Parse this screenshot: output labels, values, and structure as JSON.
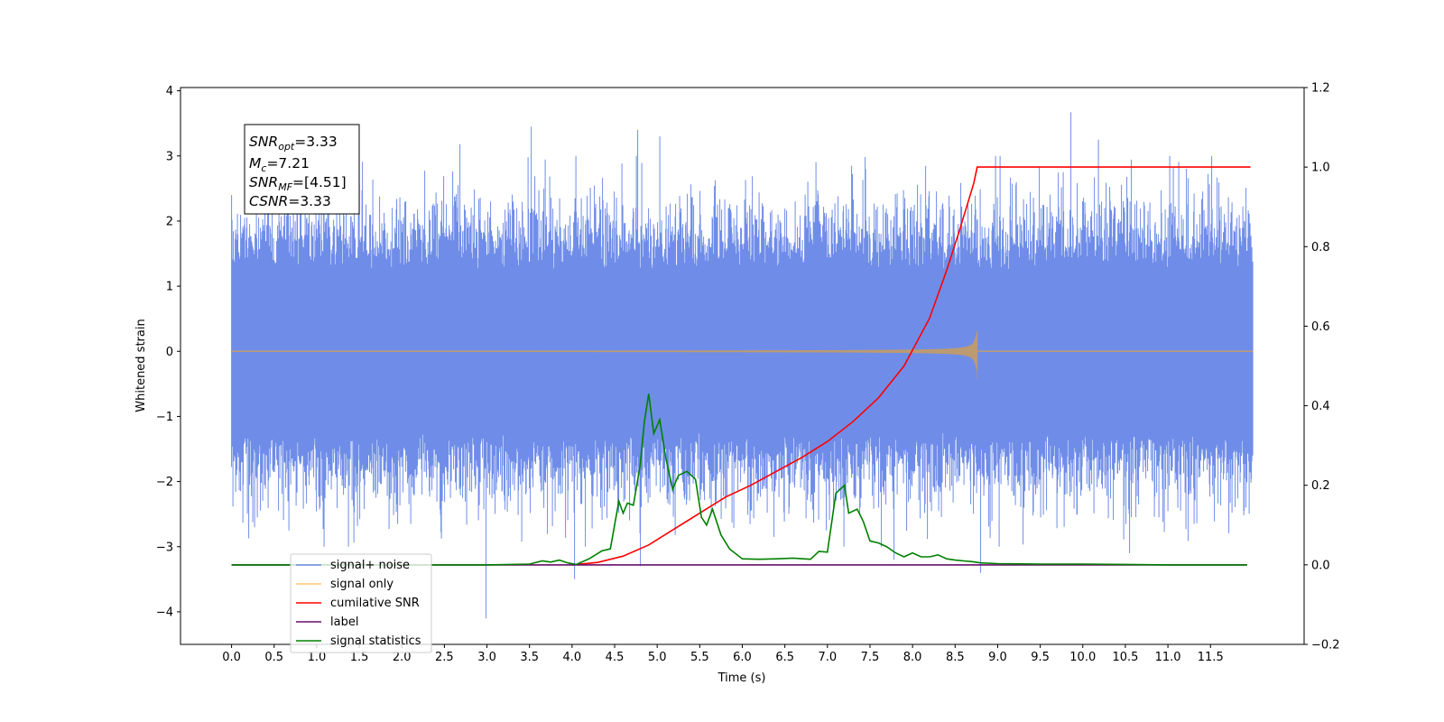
{
  "chart_data": {
    "type": "line",
    "title": "",
    "xlabel": "Time (s)",
    "ylabel": "Whitened strain",
    "ylabel_right": "",
    "xlim": [
      -0.6,
      12.6
    ],
    "ylim": [
      -4.5,
      4.05
    ],
    "ylim_right": [
      -0.2,
      1.2
    ],
    "x_ticks": [
      "0.0",
      "0.5",
      "1.0",
      "1.5",
      "2.0",
      "2.5",
      "3.0",
      "3.5",
      "4.0",
      "4.5",
      "5.0",
      "5.5",
      "6.0",
      "6.5",
      "7.0",
      "7.5",
      "8.0",
      "8.5",
      "9.0",
      "9.5",
      "10.0",
      "10.5",
      "11.0",
      "11.5"
    ],
    "y_ticks_left": [
      "−4",
      "−3",
      "−2",
      "−1",
      "0",
      "1",
      "2",
      "3",
      "4"
    ],
    "y_ticks_right": [
      "−0.2",
      "0.0",
      "0.2",
      "0.4",
      "0.6",
      "0.8",
      "1.0",
      "1.2"
    ],
    "grid": false,
    "legend_position": "lower-left",
    "annotation": {
      "lines": [
        {
          "base": "SNR",
          "sub": "opt",
          "rest": "=3.33"
        },
        {
          "base": "M",
          "sub": "c",
          "rest": "=7.21"
        },
        {
          "base": "SNR",
          "sub": "MF",
          "rest": "=[4.51]"
        },
        {
          "base": "CSNR",
          "sub": "",
          "rest": "=3.33"
        }
      ]
    },
    "series": [
      {
        "name": "signal+ noise",
        "axis": "left",
        "color": "#6f8de8",
        "kind": "noise",
        "x_range": [
          0.0,
          12.0
        ],
        "envelope_typical": 2.2,
        "spikes": [
          [
            0.0,
            2.4
          ],
          [
            2.68,
            3.18
          ],
          [
            3.52,
            3.45
          ],
          [
            4.77,
            3.4
          ],
          [
            5.03,
            3.3
          ],
          [
            9.86,
            3.67
          ],
          [
            10.18,
            3.25
          ],
          [
            11.02,
            3.0
          ],
          [
            2.99,
            -4.1
          ],
          [
            1.37,
            -3.0
          ],
          [
            4.03,
            -3.5
          ],
          [
            4.8,
            -3.3
          ],
          [
            7.78,
            -3.2
          ],
          [
            8.8,
            -3.4
          ],
          [
            10.55,
            -3.1
          ]
        ]
      },
      {
        "name": "signal only",
        "axis": "left",
        "color": "#ffc870",
        "kind": "chirp",
        "x_range": [
          0.0,
          12.0
        ],
        "merger_time": 8.76,
        "peak_amplitude": 0.32
      },
      {
        "name": "cumilative SNR",
        "axis": "right",
        "color": "#ff0000",
        "x": [
          4.0,
          4.3,
          4.6,
          4.9,
          5.2,
          5.5,
          5.8,
          6.1,
          6.4,
          6.7,
          7.0,
          7.3,
          7.6,
          7.9,
          8.2,
          8.4,
          8.55,
          8.65,
          8.72,
          8.76,
          9.0,
          11.97
        ],
        "y": [
          0.0,
          0.006,
          0.022,
          0.05,
          0.09,
          0.13,
          0.17,
          0.2,
          0.235,
          0.27,
          0.31,
          0.36,
          0.42,
          0.5,
          0.62,
          0.74,
          0.84,
          0.91,
          0.96,
          1.0,
          1.0,
          1.0
        ]
      },
      {
        "name": "label",
        "axis": "right",
        "color": "#6a0f6a",
        "x": [
          0.0,
          11.93
        ],
        "y": [
          0.0,
          0.0
        ]
      },
      {
        "name": "signal statistics",
        "axis": "right",
        "color": "#008000",
        "x": [
          0.0,
          3.0,
          3.5,
          3.65,
          3.75,
          3.85,
          3.95,
          4.05,
          4.2,
          4.35,
          4.45,
          4.55,
          4.6,
          4.65,
          4.72,
          4.8,
          4.85,
          4.9,
          4.96,
          5.03,
          5.1,
          5.18,
          5.25,
          5.35,
          5.45,
          5.52,
          5.58,
          5.65,
          5.75,
          5.85,
          6.0,
          6.2,
          6.4,
          6.6,
          6.8,
          6.9,
          7.0,
          7.1,
          7.2,
          7.25,
          7.35,
          7.42,
          7.5,
          7.6,
          7.7,
          7.8,
          7.9,
          8.0,
          8.1,
          8.2,
          8.3,
          8.4,
          8.5,
          8.6,
          8.7,
          8.8,
          9.0,
          9.5,
          10.0,
          10.5,
          11.0,
          11.93
        ],
        "y": [
          0.0,
          0.0,
          0.002,
          0.01,
          0.007,
          0.012,
          0.005,
          0.001,
          0.015,
          0.035,
          0.04,
          0.16,
          0.13,
          0.155,
          0.15,
          0.25,
          0.36,
          0.43,
          0.33,
          0.365,
          0.27,
          0.19,
          0.225,
          0.235,
          0.215,
          0.12,
          0.1,
          0.14,
          0.075,
          0.04,
          0.015,
          0.014,
          0.015,
          0.017,
          0.014,
          0.034,
          0.032,
          0.18,
          0.2,
          0.13,
          0.14,
          0.11,
          0.06,
          0.055,
          0.045,
          0.03,
          0.02,
          0.03,
          0.02,
          0.02,
          0.025,
          0.015,
          0.012,
          0.01,
          0.008,
          0.005,
          0.003,
          0.002,
          0.002,
          0.001,
          0.0,
          0.0
        ]
      }
    ]
  }
}
